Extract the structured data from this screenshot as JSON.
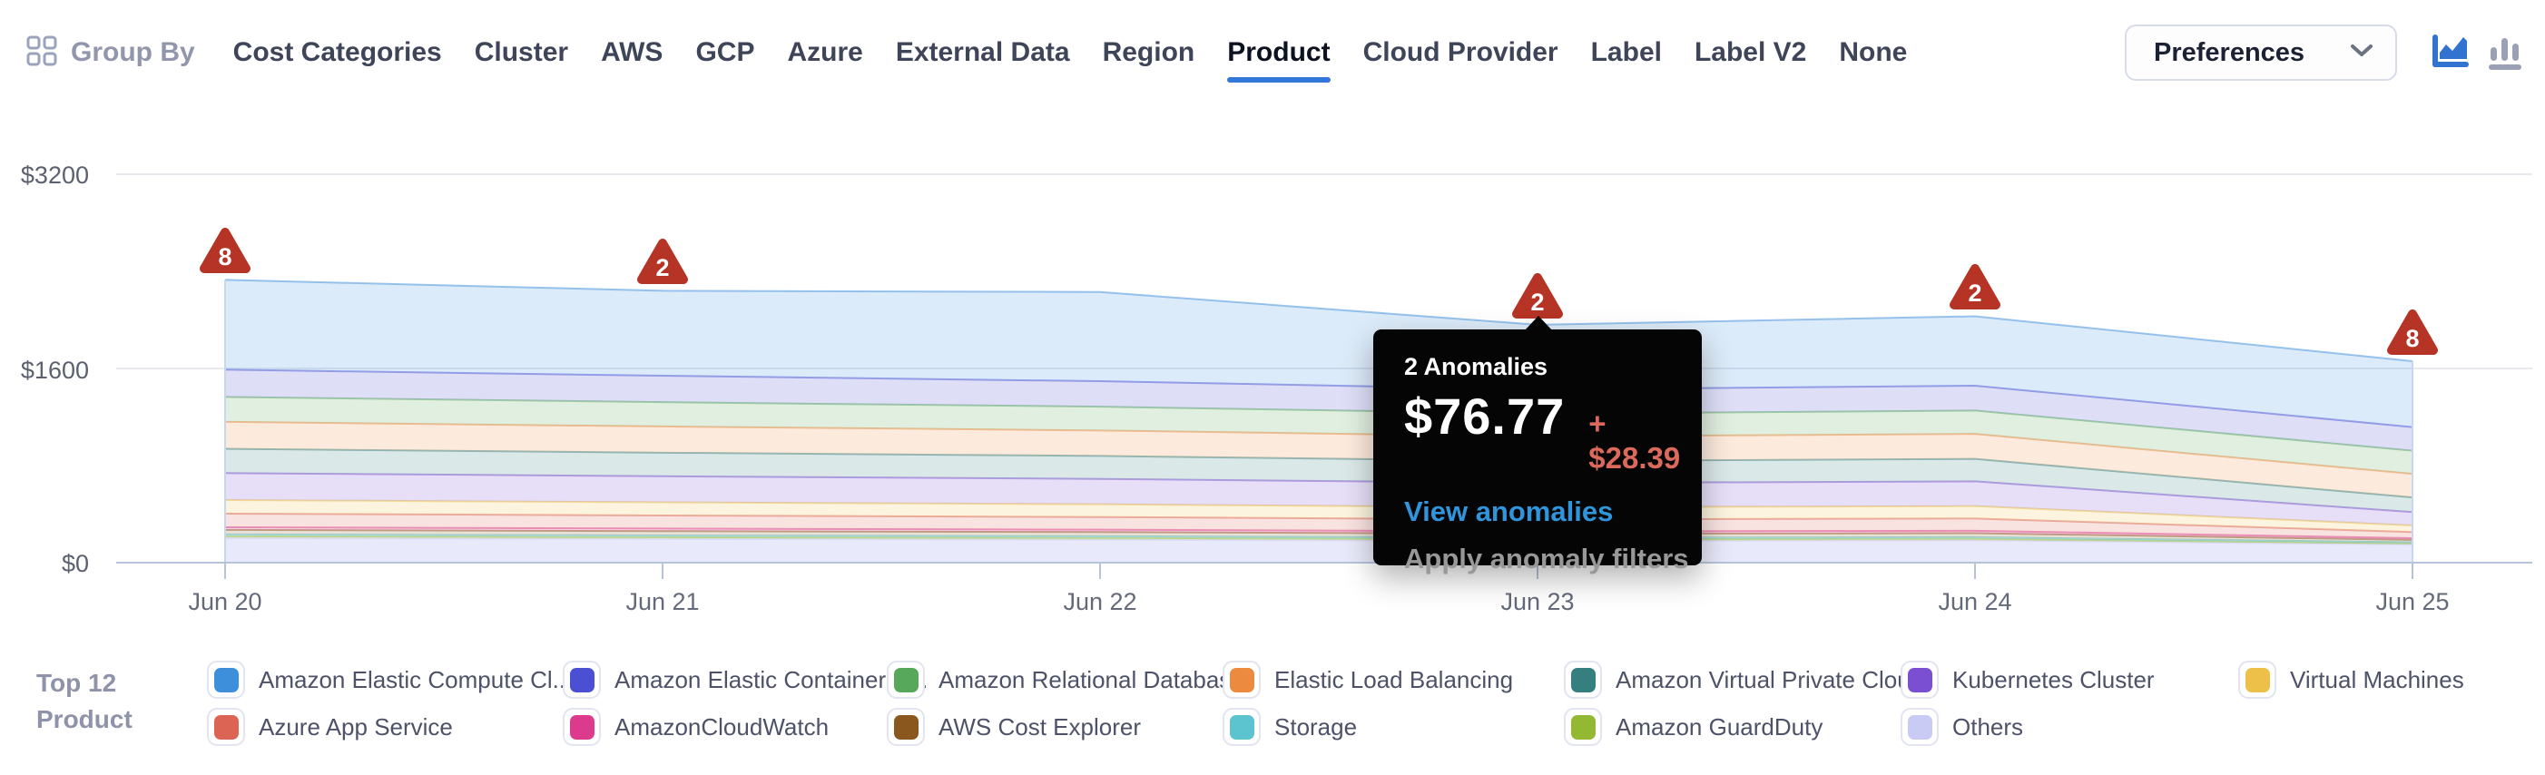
{
  "header": {
    "group_by_label": "Group By",
    "nav_items": [
      "Cost Categories",
      "Cluster",
      "AWS",
      "GCP",
      "Azure",
      "External Data",
      "Region",
      "Product",
      "Cloud Provider",
      "Label",
      "Label V2",
      "None"
    ],
    "active_item": "Product",
    "preferences_label": "Preferences",
    "accent_color": "#3377D8"
  },
  "chart_data": {
    "type": "area",
    "stacked": true,
    "grid": true,
    "x": [
      "Jun 20",
      "Jun 21",
      "Jun 22",
      "Jun 23",
      "Jun 24",
      "Jun 25"
    ],
    "y_ticks": [
      "$0",
      "$1600",
      "$3200"
    ],
    "ylim": [
      0,
      3200
    ],
    "series": [
      {
        "label": "Amazon Elastic Compute Cl...",
        "color": "#3D8EDB",
        "values": [
          740,
          700,
          735,
          533,
          572,
          543
        ]
      },
      {
        "label": "Amazon Elastic Container S...",
        "color": "#4A4FD4",
        "values": [
          225,
          218,
          210,
          200,
          205,
          195
        ]
      },
      {
        "label": "Amazon Relational Databas...",
        "color": "#58A85B",
        "values": [
          205,
          200,
          196,
          188,
          192,
          190
        ]
      },
      {
        "label": "Elastic Load Balancing",
        "color": "#EC8A40",
        "values": [
          222,
          216,
          210,
          202,
          206,
          195
        ]
      },
      {
        "label": "Amazon Virtual Private Cloud",
        "color": "#35807E",
        "values": [
          200,
          194,
          189,
          181,
          185,
          120
        ]
      },
      {
        "label": "Kubernetes Cluster",
        "color": "#7B4FD1",
        "values": [
          222,
          215,
          209,
          200,
          204,
          110
        ]
      },
      {
        "label": "Virtual Machines",
        "color": "#EDC04A",
        "values": [
          112,
          108,
          105,
          100,
          102,
          55
        ]
      },
      {
        "label": "Azure App Service",
        "color": "#DC6454",
        "values": [
          112,
          108,
          104,
          99,
          101,
          50
        ]
      },
      {
        "label": "AmazonCloudWatch",
        "color": "#DC3A8C",
        "values": [
          22,
          21,
          20,
          19,
          20,
          14
        ]
      },
      {
        "label": "AWS Cost Explorer",
        "color": "#8A571E",
        "values": [
          37,
          36,
          34,
          32,
          33,
          20
        ]
      },
      {
        "label": "Storage",
        "color": "#5BC4CE",
        "values": [
          15,
          14,
          14,
          13,
          13,
          9
        ]
      },
      {
        "label": "Amazon GuardDuty",
        "color": "#93B832",
        "values": [
          15,
          14,
          14,
          13,
          13,
          9
        ]
      },
      {
        "label": "Others",
        "color": "#C9CBF4",
        "values": [
          203,
          196,
          190,
          180,
          184,
          150
        ]
      }
    ],
    "anomalies": [
      {
        "x": "Jun 20",
        "count": "8"
      },
      {
        "x": "Jun 21",
        "count": "2"
      },
      {
        "x": "Jun 23",
        "count": "2"
      },
      {
        "x": "Jun 24",
        "count": "2"
      },
      {
        "x": "Jun 25",
        "count": "8"
      }
    ],
    "anomaly_color": "#B53425",
    "legend_position": "bottom"
  },
  "tooltip": {
    "anchored_to": "Jun 23",
    "title": "2 Anomalies",
    "value": "$76.77",
    "delta": "+ $28.39",
    "link": "View anomalies",
    "action": "Apply anomaly filters",
    "delta_color": "#DC6A5C",
    "link_color": "#2F96DD"
  },
  "legend": {
    "title_line1": "Top 12",
    "title_line2": "Product"
  }
}
